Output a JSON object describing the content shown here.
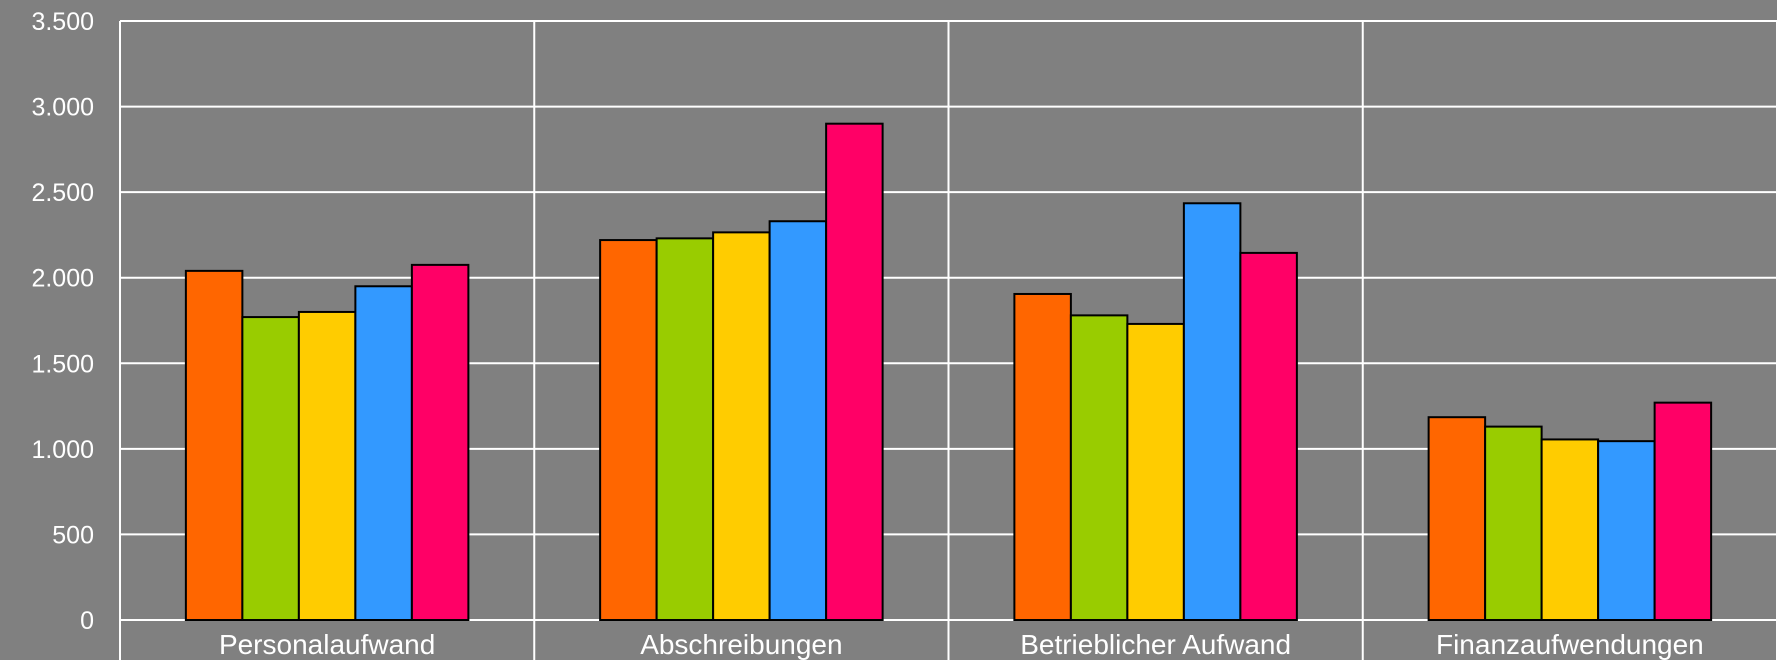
{
  "chart_data": {
    "type": "bar",
    "title": "",
    "xlabel": "",
    "ylabel": "",
    "categories": [
      "Personalaufwand",
      "Abschreibungen",
      "Betrieblicher Aufwand",
      "Finanzaufwendungen"
    ],
    "series": [
      {
        "color": "#ff6600",
        "values": [
          2040,
          2220,
          1905,
          1185
        ]
      },
      {
        "color": "#99cc00",
        "values": [
          1770,
          2230,
          1780,
          1130
        ]
      },
      {
        "color": "#ffcc00",
        "values": [
          1800,
          2265,
          1730,
          1055
        ]
      },
      {
        "color": "#3399ff",
        "values": [
          1950,
          2330,
          2435,
          1045
        ]
      },
      {
        "color": "#ff0066",
        "values": [
          2075,
          2900,
          2145,
          1270
        ]
      }
    ],
    "ylim": [
      0,
      3500
    ],
    "yticks": [
      0,
      500,
      1000,
      1500,
      2000,
      2500,
      3000,
      3500
    ],
    "ytick_labels": [
      "0",
      "500",
      "1.000",
      "1.500",
      "2.000",
      "2.500",
      "3.000",
      "3.500"
    ],
    "grid": true,
    "legend": "none",
    "background_color": "#808080",
    "grid_color": "#ffffff",
    "bar_outline_color": "#000000"
  }
}
